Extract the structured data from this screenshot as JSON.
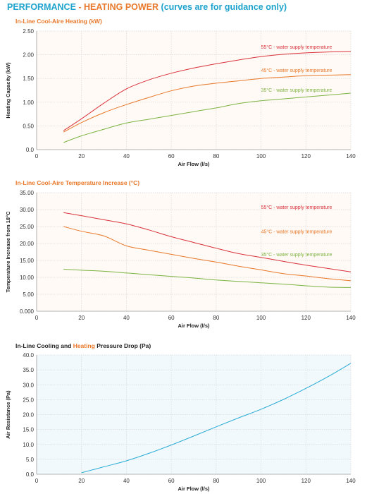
{
  "header": {
    "part1": "PERFORMANCE",
    "part2": " - HEATING POWER",
    "part3": " (curves are for guidance only)"
  },
  "colors": {
    "brand_blue": "#1fa3cc",
    "brand_orange": "#e8782a",
    "series_55": "#d9323c",
    "series_45": "#e8782a",
    "series_35": "#7cb342",
    "pressure_line": "#29abd4",
    "warm_plot_bg": "#fffaf5",
    "cool_plot_bg": "#f1f9fd",
    "grid": "#d8d8d8"
  },
  "chart_data": [
    {
      "id": "heating",
      "type": "line",
      "title": "In-Line Cool-Aire Heating (kW)",
      "title_color": "#e8782a",
      "background": "warm",
      "xlabel": "Air Flow (l/s)",
      "ylabel": "Heating Capacity (kW)",
      "ylabel_color": "#e8782a",
      "xlim": [
        0,
        140
      ],
      "ylim": [
        0,
        2.5
      ],
      "xticks": [
        "0",
        "20",
        "40",
        "60",
        "80",
        "100",
        "120",
        "140"
      ],
      "yticks": [
        "0.0",
        "0.50",
        "1.00",
        "1.50",
        "2.00",
        "2.50"
      ],
      "grid": true,
      "series": [
        {
          "name": "55°C - water supply temperature",
          "color": "#d9323c",
          "x": [
            12,
            20,
            30,
            40,
            50,
            60,
            70,
            80,
            90,
            100,
            110,
            120,
            130,
            140
          ],
          "y": [
            0.4,
            0.65,
            0.98,
            1.28,
            1.47,
            1.61,
            1.72,
            1.81,
            1.89,
            1.96,
            2.01,
            2.04,
            2.06,
            2.07
          ],
          "label_at": [
            100,
            2.13
          ]
        },
        {
          "name": "45°C - water supply temperature",
          "color": "#e8782a",
          "x": [
            12,
            20,
            30,
            40,
            50,
            60,
            70,
            80,
            90,
            100,
            110,
            120,
            130,
            140
          ],
          "y": [
            0.37,
            0.57,
            0.78,
            0.95,
            1.1,
            1.24,
            1.34,
            1.4,
            1.45,
            1.5,
            1.53,
            1.56,
            1.57,
            1.58
          ],
          "label_at": [
            100,
            1.64
          ]
        },
        {
          "name": "35°C - water supply temperature",
          "color": "#7cb342",
          "x": [
            12,
            20,
            30,
            40,
            50,
            60,
            70,
            80,
            90,
            100,
            110,
            120,
            130,
            140
          ],
          "y": [
            0.15,
            0.29,
            0.43,
            0.56,
            0.64,
            0.72,
            0.8,
            0.88,
            0.97,
            1.03,
            1.07,
            1.11,
            1.15,
            1.19
          ],
          "label_at": [
            100,
            1.22
          ]
        }
      ]
    },
    {
      "id": "temperature",
      "type": "line",
      "title": "In-Line Cool-Aire Temperature Increase (°C)",
      "title_color": "#e8782a",
      "background": "warm",
      "xlabel": "Air Flow (l/s)",
      "ylabel": "Temperature Increase from 18°C",
      "ylabel_color": "#e8782a",
      "xlim": [
        0,
        140
      ],
      "ylim": [
        0,
        35
      ],
      "xticks": [
        "0",
        "20",
        "40",
        "60",
        "80",
        "100",
        "120",
        "140"
      ],
      "yticks": [
        "0.000",
        "5.00",
        "10.00",
        "15.00",
        "20.00",
        "25.00",
        "30.00",
        "35.00"
      ],
      "grid": true,
      "series": [
        {
          "name": "55°C - water supply temperature",
          "color": "#d9323c",
          "x": [
            12,
            20,
            30,
            40,
            50,
            60,
            70,
            80,
            90,
            100,
            110,
            120,
            130,
            140
          ],
          "y": [
            29.1,
            28.2,
            27.0,
            25.8,
            24.0,
            22.0,
            20.3,
            18.6,
            17.0,
            15.9,
            14.7,
            13.6,
            12.6,
            11.6
          ],
          "label_at": [
            100,
            30.2
          ]
        },
        {
          "name": "45°C - water supply temperature",
          "color": "#e8782a",
          "x": [
            12,
            20,
            30,
            40,
            50,
            60,
            70,
            80,
            90,
            100,
            110,
            120,
            130,
            140
          ],
          "y": [
            25.0,
            23.6,
            22.2,
            19.3,
            18.0,
            16.8,
            15.6,
            14.5,
            13.3,
            12.2,
            11.1,
            10.4,
            9.6,
            9.0
          ],
          "label_at": [
            100,
            23.0
          ]
        },
        {
          "name": "35°C - water supply temperature",
          "color": "#7cb342",
          "x": [
            12,
            20,
            30,
            40,
            50,
            60,
            70,
            80,
            90,
            100,
            110,
            120,
            130,
            140
          ],
          "y": [
            12.4,
            12.1,
            11.8,
            11.3,
            10.8,
            10.3,
            9.8,
            9.2,
            8.8,
            8.4,
            8.0,
            7.5,
            7.1,
            7.0
          ],
          "label_at": [
            100,
            16.3
          ]
        }
      ]
    },
    {
      "id": "pressure",
      "type": "line",
      "title_parts": [
        {
          "text": "In-Line Cooling and ",
          "color": "#222222"
        },
        {
          "text": "Heating",
          "color": "#e8782a"
        },
        {
          "text": " Pressure Drop (Pa)",
          "color": "#222222"
        }
      ],
      "background": "cool",
      "xlabel": "Air Flow (l/s)",
      "ylabel": "Air Resistance (Pa)",
      "ylabel_color": "#222222",
      "xlim": [
        0,
        140
      ],
      "ylim": [
        0,
        40
      ],
      "xticks": [
        "0",
        "20",
        "40",
        "60",
        "80",
        "100",
        "120",
        "140"
      ],
      "yticks": [
        "0.0",
        "5.0",
        "10.0",
        "15.0",
        "20.0",
        "25.0",
        "30.0",
        "35.0",
        "40.0"
      ],
      "grid": true,
      "series": [
        {
          "name": "",
          "color": "#29abd4",
          "x": [
            20,
            30,
            40,
            50,
            60,
            70,
            80,
            90,
            100,
            110,
            120,
            130,
            140
          ],
          "y": [
            0.5,
            2.5,
            4.5,
            7.0,
            9.8,
            12.8,
            15.9,
            18.9,
            21.8,
            25.1,
            28.8,
            32.8,
            37.2
          ]
        }
      ]
    }
  ]
}
